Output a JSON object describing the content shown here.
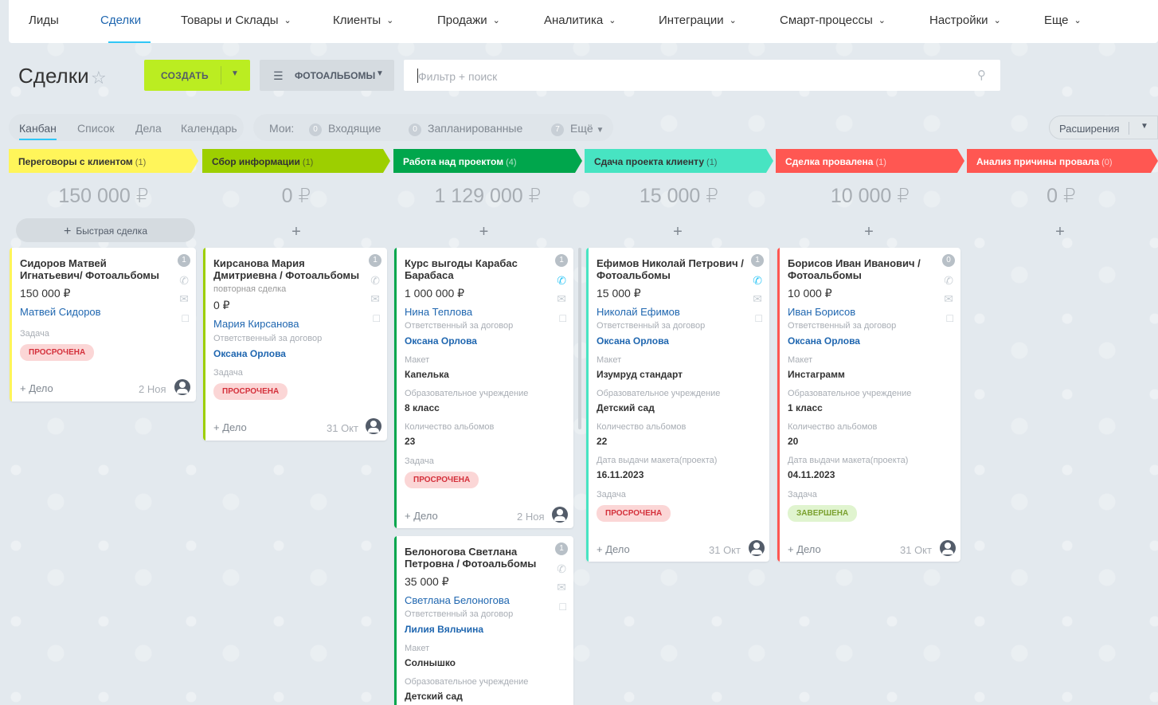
{
  "nav": {
    "items": [
      {
        "label": "Лиды",
        "chevron": false
      },
      {
        "label": "Сделки",
        "chevron": false,
        "active": true
      },
      {
        "label": "Товары и Склады",
        "chevron": true
      },
      {
        "label": "Клиенты",
        "chevron": true
      },
      {
        "label": "Продажи",
        "chevron": true
      },
      {
        "label": "Аналитика",
        "chevron": true
      },
      {
        "label": "Интеграции",
        "chevron": true
      },
      {
        "label": "Смарт-процессы",
        "chevron": true
      },
      {
        "label": "Настройки",
        "chevron": true
      },
      {
        "label": "Еще",
        "chevron": true
      }
    ]
  },
  "header": {
    "title": "Сделки",
    "create_label": "СОЗДАТЬ",
    "filter_label": "ФОТОАЛЬБОМЫ",
    "search_placeholder": "Фильтр + поиск"
  },
  "views": [
    "Канбан",
    "Список",
    "Дела",
    "Календарь"
  ],
  "mine": {
    "label": "Мои:",
    "incoming_count": "0",
    "incoming_label": "Входящие",
    "planned_count": "0",
    "planned_label": "Запланированные",
    "more_count": "7",
    "more_label": "Ещё"
  },
  "extensions_label": "Расширения",
  "quick_deal_label": "Быстрая сделка",
  "colors": {
    "accent": "#2fc6f6",
    "create": "#bbed21",
    "link": "#2067b0"
  },
  "stages": [
    {
      "name": "Переговоры с клиентом",
      "count": "(1)",
      "sum": "150 000 ₽",
      "color": "#fff55a",
      "text": "#333333"
    },
    {
      "name": "Сбор информации",
      "count": "(1)",
      "sum": "0 ₽",
      "color": "#9dcf00",
      "text": "#333333"
    },
    {
      "name": "Работа над проектом",
      "count": "(4)",
      "sum": "1 129 000 ₽",
      "color": "#00a64c",
      "text": "#ffffff"
    },
    {
      "name": "Сдача проекта клиенту",
      "count": "(1)",
      "sum": "15 000 ₽",
      "color": "#47e4c2",
      "text": "#333333"
    },
    {
      "name": "Сделка провалена",
      "count": "(1)",
      "sum": "10 000 ₽",
      "color": "#ff5752",
      "text": "#ffffff"
    },
    {
      "name": "Анализ причины провала",
      "count": "(0)",
      "sum": "0 ₽",
      "color": "#ff5752",
      "text": "#ffffff"
    }
  ],
  "cards": {
    "c1": {
      "title": "Сидоров Матвей Игнатьевич/ Фотоальбомы",
      "badge": "1",
      "price": "150 000 ₽",
      "contact": "Матвей Сидоров",
      "task_label": "Задача",
      "task": "ПРОСРОЧЕНА",
      "add": "+ Дело",
      "date": "2 Ноя"
    },
    "c2": {
      "title": "Кирсанова Мария Дмитриевна / Фотоальбомы",
      "badge": "1",
      "note": "повторная сделка",
      "price": "0 ₽",
      "contact": "Мария Кирсанова",
      "resp_label": "Ответственный за договор",
      "resp": "Оксана Орлова",
      "task_label": "Задача",
      "task": "ПРОСРОЧЕНА",
      "add": "+ Дело",
      "date": "31 Окт"
    },
    "c3": {
      "title": "Курс выгоды Карабас Барабаса",
      "badge": "1",
      "price": "1 000 000 ₽",
      "contact": "Нина Теплова",
      "resp_label": "Ответственный за договор",
      "resp": "Оксана Орлова",
      "maket_label": "Макет",
      "maket": "Капелька",
      "school_label": "Образовательное учреждение",
      "school": "8 класс",
      "albums_label": "Количество альбомов",
      "albums": "23",
      "task_label": "Задача",
      "task": "ПРОСРОЧЕНА",
      "add": "+ Дело",
      "date": "2 Ноя"
    },
    "c4": {
      "title": "Белоногова Светлана Петровна / Фотоальбомы",
      "badge": "1",
      "price": "35 000 ₽",
      "contact": "Светлана Белоногова",
      "resp_label": "Ответственный за договор",
      "resp": "Лилия Вяльчина",
      "maket_label": "Макет",
      "maket": "Солнышко",
      "school_label": "Образовательное учреждение",
      "school": "Детский сад"
    },
    "c5": {
      "title": "Ефимов Николай Петрович / Фотоальбомы",
      "badge": "1",
      "price": "15 000 ₽",
      "contact": "Николай Ефимов",
      "resp_label": "Ответственный за договор",
      "resp": "Оксана Орлова",
      "maket_label": "Макет",
      "maket": "Изумруд стандарт",
      "school_label": "Образовательное учреждение",
      "school": "Детский сад",
      "albums_label": "Количество альбомов",
      "albums": "22",
      "date_label": "Дата выдачи макета(проекта)",
      "issue_date": "16.11.2023",
      "task_label": "Задача",
      "task": "ПРОСРОЧЕНА",
      "add": "+ Дело",
      "date": "31 Окт"
    },
    "c6": {
      "title": "Борисов Иван Иванович / Фотоальбомы",
      "badge": "0",
      "price": "10 000 ₽",
      "contact": "Иван Борисов",
      "resp_label": "Ответственный за договор",
      "resp": "Оксана Орлова",
      "maket_label": "Макет",
      "maket": "Инстаграмм",
      "school_label": "Образовательное учреждение",
      "school": "1 класс",
      "albums_label": "Количество альбомов",
      "albums": "20",
      "date_label": "Дата выдачи макета(проекта)",
      "issue_date": "04.11.2023",
      "task_label": "Задача",
      "task": "ЗАВЕРШЕНА",
      "add": "+ Дело",
      "date": "31 Окт"
    }
  }
}
